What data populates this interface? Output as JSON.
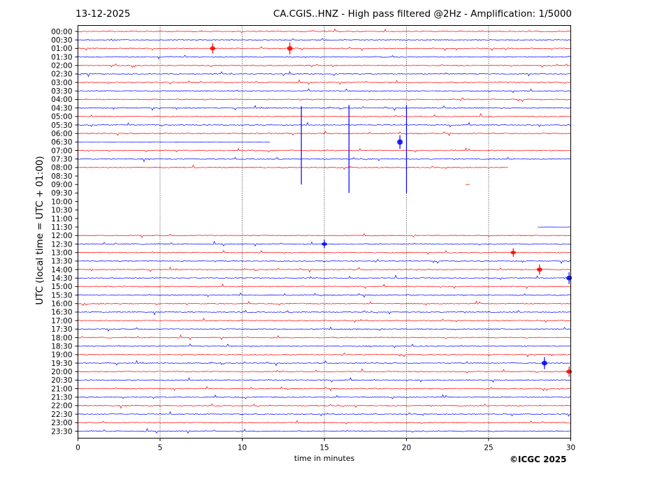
{
  "header": {
    "date": "13-12-2025",
    "title": "CA.CGIS..HNZ - High pass filtered @2Hz - Amplification: 1/5000"
  },
  "credit": "©ICGC 2025",
  "chart_data": {
    "type": "line",
    "title": "CA.CGIS..HNZ - High pass filtered @2Hz - Amplification: 1/5000",
    "xlabel": "time in minutes",
    "ylabel": "UTC (local time = UTC + 01:00)",
    "xlim": [
      0,
      30
    ],
    "x_ticks": [
      0,
      5,
      10,
      15,
      20,
      25,
      30
    ],
    "vertical_gridlines_at": [
      5,
      10,
      15,
      20,
      25
    ],
    "row_labels": [
      "00:00",
      "00:30",
      "01:00",
      "01:30",
      "02:00",
      "02:30",
      "03:00",
      "03:30",
      "04:00",
      "04:30",
      "05:00",
      "05:30",
      "06:00",
      "06:30",
      "07:00",
      "07:30",
      "08:00",
      "08:30",
      "09:00",
      "09:30",
      "10:00",
      "10:30",
      "11:00",
      "11:30",
      "12:00",
      "12:30",
      "13:00",
      "13:30",
      "14:00",
      "14:30",
      "15:00",
      "15:30",
      "16:00",
      "16:30",
      "17:00",
      "17:30",
      "18:00",
      "18:30",
      "19:00",
      "19:30",
      "20:00",
      "20:30",
      "21:00",
      "21:30",
      "22:00",
      "22:30",
      "23:00",
      "23:30"
    ],
    "colors": {
      "even_rows": "#ff0000",
      "odd_rows": "#0000ff"
    },
    "data_gap": {
      "from_row": "08:30",
      "to_row": "11:30"
    },
    "trace_extents_min": {
      "06:30": [
        0,
        11.7
      ],
      "08:00": [
        0,
        26.2
      ],
      "09:00": [
        23.6,
        23.9
      ],
      "11:30": [
        28,
        30
      ]
    },
    "notable_spikes": [
      {
        "row": "01:00",
        "minute": 8.2,
        "amplitude": 0.6
      },
      {
        "row": "01:00",
        "minute": 12.9,
        "amplitude": 0.7
      },
      {
        "row": "05:00",
        "minute": 13.6,
        "amplitude": 8.0
      },
      {
        "row": "05:00",
        "minute": 16.5,
        "amplitude": 9.0
      },
      {
        "row": "05:00",
        "minute": 20.0,
        "amplitude": 9.0
      },
      {
        "row": "06:30",
        "minute": 19.6,
        "amplitude": 0.8
      },
      {
        "row": "12:30",
        "minute": 15.0,
        "amplitude": 0.5
      },
      {
        "row": "13:00",
        "minute": 26.5,
        "amplitude": 0.5
      },
      {
        "row": "14:00",
        "minute": 28.1,
        "amplitude": 0.6
      },
      {
        "row": "14:30",
        "minute": 29.9,
        "amplitude": 0.7
      },
      {
        "row": "19:30",
        "minute": 28.4,
        "amplitude": 0.7
      },
      {
        "row": "20:00",
        "minute": 29.9,
        "amplitude": 0.6
      }
    ]
  }
}
